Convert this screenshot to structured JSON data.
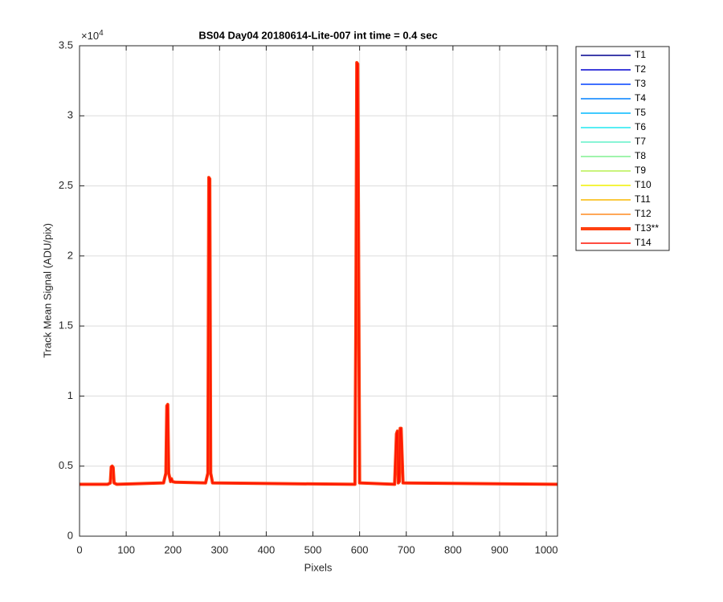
{
  "chart_data": {
    "type": "line",
    "title": "BS04 Day04 20180614-Lite-007 int time = 0.4 sec",
    "x_label": "Pixels",
    "y_label": "Track Mean Signal (ADU/pix)",
    "y_multiplier": "×10⁴",
    "xlim": [
      0,
      1024
    ],
    "xticks": [
      0,
      100,
      200,
      300,
      400,
      500,
      600,
      700,
      800,
      900,
      1000
    ],
    "ylim": [
      0,
      35000
    ],
    "yticks": [
      0,
      {
        "value": 5000,
        "label": "0.5"
      },
      {
        "value": 10000,
        "label": "1"
      },
      {
        "value": 15000,
        "label": "1.5"
      },
      {
        "value": 20000,
        "label": "2"
      },
      {
        "value": 25000,
        "label": "2.5"
      },
      {
        "value": 30000,
        "label": "3"
      },
      {
        "value": 35000,
        "label": "3.5"
      }
    ],
    "grid": true,
    "legend": "outside-right",
    "x": [
      0,
      60,
      66,
      68,
      70,
      72,
      74,
      80,
      180,
      185,
      187,
      189,
      191,
      195,
      197,
      199,
      205,
      270,
      275,
      277,
      279,
      281,
      285,
      590,
      592,
      594,
      596,
      600,
      675,
      679,
      681,
      683,
      685,
      687,
      689,
      693,
      1024
    ],
    "series": [
      {
        "name": "T1",
        "color": "#00008f",
        "linewidth": 1.5,
        "values": [
          3700,
          3700,
          3800,
          4950,
          5000,
          4900,
          3800,
          3700,
          3800,
          4500,
          9300,
          9400,
          4500,
          3900,
          4100,
          3900,
          3850,
          3800,
          4500,
          25600,
          25500,
          4500,
          3800,
          3700,
          15000,
          33800,
          33700,
          3800,
          3700,
          7300,
          7500,
          3800,
          3900,
          7700,
          7700,
          3800,
          3700
        ]
      },
      {
        "name": "T2",
        "color": "#0000d0",
        "linewidth": 1.5,
        "values": [
          3700,
          3700,
          3800,
          4950,
          5000,
          4900,
          3800,
          3700,
          3800,
          4500,
          9300,
          9400,
          4500,
          3900,
          4100,
          3900,
          3850,
          3800,
          4500,
          25600,
          25500,
          4500,
          3800,
          3700,
          15000,
          33800,
          33700,
          3800,
          3700,
          7300,
          7500,
          3800,
          3900,
          7700,
          7700,
          3800,
          3700
        ]
      },
      {
        "name": "T3",
        "color": "#0040ff",
        "linewidth": 1.5,
        "values": [
          3700,
          3700,
          3800,
          4950,
          5000,
          4900,
          3800,
          3700,
          3800,
          4500,
          9300,
          9400,
          4500,
          3900,
          4100,
          3900,
          3850,
          3800,
          4500,
          25600,
          25500,
          4500,
          3800,
          3700,
          15000,
          33800,
          33700,
          3800,
          3700,
          7300,
          7500,
          3800,
          3900,
          7700,
          7700,
          3800,
          3700
        ]
      },
      {
        "name": "T4",
        "color": "#0080ff",
        "linewidth": 1.5,
        "values": [
          3700,
          3700,
          3800,
          4950,
          5000,
          4900,
          3800,
          3700,
          3800,
          4500,
          9300,
          9400,
          4500,
          3900,
          4100,
          3900,
          3850,
          3800,
          4500,
          25600,
          25500,
          4500,
          3800,
          3700,
          15000,
          33800,
          33700,
          3800,
          3700,
          7300,
          7500,
          3800,
          3900,
          7700,
          7700,
          3800,
          3700
        ]
      },
      {
        "name": "T5",
        "color": "#00b8ff",
        "linewidth": 1.5,
        "values": [
          3700,
          3700,
          3800,
          4950,
          5000,
          4900,
          3800,
          3700,
          3800,
          4500,
          9300,
          9400,
          4500,
          3900,
          4100,
          3900,
          3850,
          3800,
          4500,
          25600,
          25500,
          4500,
          3800,
          3700,
          15000,
          33800,
          33700,
          3800,
          3700,
          7300,
          7500,
          3800,
          3900,
          7700,
          7700,
          3800,
          3700
        ]
      },
      {
        "name": "T6",
        "color": "#20e8f0",
        "linewidth": 1.5,
        "values": [
          3700,
          3700,
          3800,
          4950,
          5000,
          4900,
          3800,
          3700,
          3800,
          4500,
          9300,
          9400,
          4500,
          3900,
          4100,
          3900,
          3850,
          3800,
          4500,
          25600,
          25500,
          4500,
          3800,
          3700,
          15000,
          33800,
          33700,
          3800,
          3700,
          7300,
          7500,
          3800,
          3900,
          7700,
          7700,
          3800,
          3700
        ]
      },
      {
        "name": "T7",
        "color": "#60f0c8",
        "linewidth": 1.5,
        "values": [
          3700,
          3700,
          3800,
          4950,
          5000,
          4900,
          3800,
          3700,
          3800,
          4500,
          9300,
          9400,
          4500,
          3900,
          4100,
          3900,
          3850,
          3800,
          4500,
          25600,
          25500,
          4500,
          3800,
          3700,
          15000,
          33800,
          33700,
          3800,
          3700,
          7300,
          7500,
          3800,
          3900,
          7700,
          7700,
          3800,
          3700
        ]
      },
      {
        "name": "T8",
        "color": "#80f090",
        "linewidth": 1.5,
        "values": [
          3700,
          3700,
          3800,
          4950,
          5000,
          4900,
          3800,
          3700,
          3800,
          4500,
          9300,
          9400,
          4500,
          3900,
          4100,
          3900,
          3850,
          3800,
          4500,
          25600,
          25500,
          4500,
          3800,
          3700,
          15000,
          33800,
          33700,
          3800,
          3700,
          7300,
          7500,
          3800,
          3900,
          7700,
          7700,
          3800,
          3700
        ]
      },
      {
        "name": "T9",
        "color": "#b8f050",
        "linewidth": 1.5,
        "values": [
          3700,
          3700,
          3800,
          4950,
          5000,
          4900,
          3800,
          3700,
          3800,
          4500,
          9300,
          9400,
          4500,
          3900,
          4100,
          3900,
          3850,
          3800,
          4500,
          25600,
          25500,
          4500,
          3800,
          3700,
          15000,
          33800,
          33700,
          3800,
          3700,
          7300,
          7500,
          3800,
          3900,
          7700,
          7700,
          3800,
          3700
        ]
      },
      {
        "name": "T10",
        "color": "#f0f000",
        "linewidth": 1.5,
        "values": [
          3700,
          3700,
          3800,
          4950,
          5000,
          4900,
          3800,
          3700,
          3800,
          4500,
          9300,
          9400,
          4500,
          3900,
          4100,
          3900,
          3850,
          3800,
          4500,
          25600,
          25500,
          4500,
          3800,
          3700,
          15000,
          33800,
          33700,
          3800,
          3700,
          7300,
          7500,
          3800,
          3900,
          7700,
          7700,
          3800,
          3700
        ]
      },
      {
        "name": "T11",
        "color": "#f8b800",
        "linewidth": 1.5,
        "values": [
          3700,
          3700,
          3800,
          4950,
          5000,
          4900,
          3800,
          3700,
          3800,
          4500,
          9300,
          9400,
          4500,
          3900,
          4100,
          3900,
          3850,
          3800,
          4500,
          25600,
          25500,
          4500,
          3800,
          3700,
          15000,
          33800,
          33700,
          3800,
          3700,
          7300,
          7500,
          3800,
          3900,
          7700,
          7700,
          3800,
          3700
        ]
      },
      {
        "name": "T12",
        "color": "#ff8c20",
        "linewidth": 1.5,
        "values": [
          3700,
          3700,
          3800,
          4950,
          5000,
          4900,
          3800,
          3700,
          3800,
          4500,
          9300,
          9400,
          4500,
          3900,
          4100,
          3900,
          3850,
          3800,
          4500,
          25600,
          25500,
          4500,
          3800,
          3700,
          15000,
          33800,
          33700,
          3800,
          3700,
          7300,
          7500,
          3800,
          3900,
          7700,
          7700,
          3800,
          3700
        ]
      },
      {
        "name": "T13**",
        "color": "#ff4010",
        "linewidth": 4,
        "values": [
          3700,
          3700,
          3800,
          4950,
          5000,
          4900,
          3800,
          3700,
          3800,
          4500,
          9300,
          9400,
          4500,
          3900,
          4100,
          3900,
          3850,
          3800,
          4500,
          25600,
          25500,
          4500,
          3800,
          3700,
          15000,
          33800,
          33700,
          3800,
          3700,
          7300,
          7500,
          3800,
          3900,
          7700,
          7700,
          3800,
          3700
        ]
      },
      {
        "name": "T14",
        "color": "#ff1000",
        "linewidth": 1.5,
        "values": [
          3700,
          3700,
          3800,
          4950,
          5000,
          4900,
          3800,
          3700,
          3800,
          4500,
          9300,
          9400,
          4500,
          3900,
          4100,
          3900,
          3850,
          3800,
          4500,
          25600,
          25500,
          4500,
          3800,
          3700,
          15000,
          33800,
          33700,
          3800,
          3700,
          7300,
          7500,
          3800,
          3900,
          7700,
          7700,
          3800,
          3700
        ]
      }
    ]
  }
}
